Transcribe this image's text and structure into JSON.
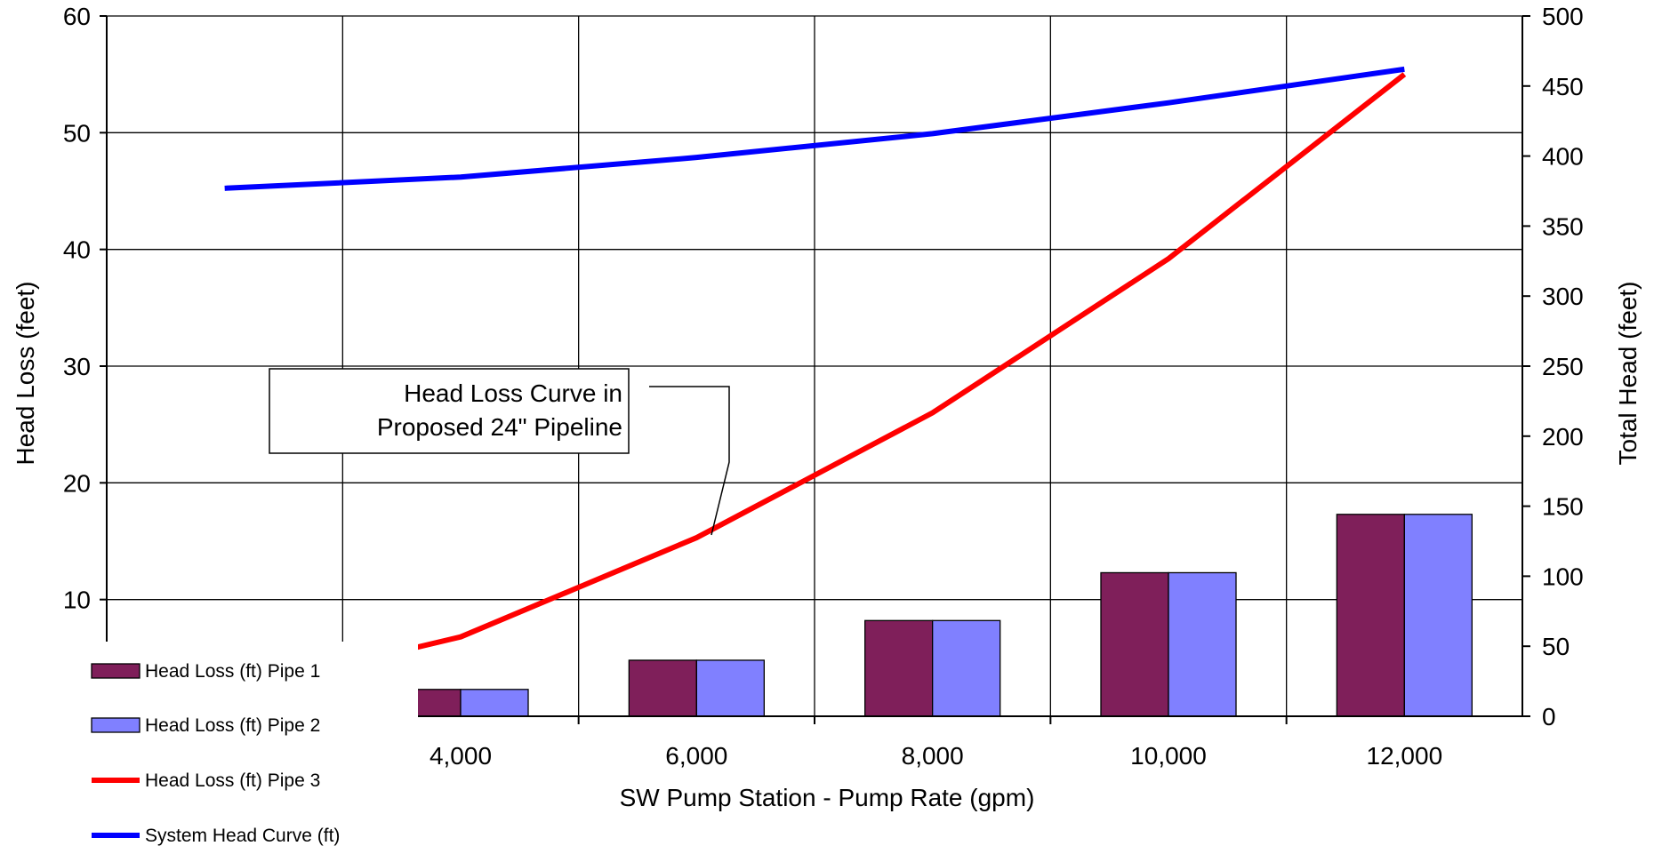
{
  "chart_data": {
    "type": "bar",
    "x_categories": [
      "",
      "4,000",
      "6,000",
      "8,000",
      "10,000",
      "12,000"
    ],
    "x_values_gpm": [
      2000,
      4000,
      6000,
      8000,
      10000,
      12000
    ],
    "xlabel": "SW Pump Station - Pump Rate (gpm)",
    "ylabel_left": "Head Loss (feet)",
    "ylabel_right": "Total Head (feet)",
    "ylim_left": [
      0,
      60
    ],
    "ylim_right": [
      0,
      500
    ],
    "y_ticks_left": [
      "",
      "10",
      "20",
      "30",
      "40",
      "50",
      "60"
    ],
    "y_ticks_right": [
      "0",
      "50",
      "100",
      "150",
      "200",
      "250",
      "300",
      "350",
      "400",
      "450",
      "500"
    ],
    "grid": true,
    "legend_position": "bottom-left",
    "series": [
      {
        "name": "Head Loss (ft) Pipe 1",
        "type": "bar",
        "axis": "left",
        "color": "#7f1f5a",
        "values": [
          0.5,
          2.3,
          4.8,
          8.2,
          12.3,
          17.3
        ]
      },
      {
        "name": "Head Loss (ft) Pipe 2",
        "type": "bar",
        "axis": "left",
        "color": "#8080ff",
        "values": [
          0.5,
          2.3,
          4.8,
          8.2,
          12.3,
          17.3
        ]
      },
      {
        "name": "Head Loss (ft) Pipe 3",
        "type": "line",
        "axis": "left",
        "color": "#ff0000",
        "values": [
          2.0,
          6.8,
          15.3,
          26.0,
          39.2,
          55.0
        ]
      },
      {
        "name": "System Head Curve (ft)",
        "type": "line",
        "axis": "right",
        "color": "#0000ff",
        "values": [
          377,
          385,
          399,
          416,
          438,
          462
        ]
      }
    ],
    "annotation": {
      "lines": [
        "Head Loss Curve in",
        "Proposed 24\" Pipeline"
      ]
    }
  }
}
